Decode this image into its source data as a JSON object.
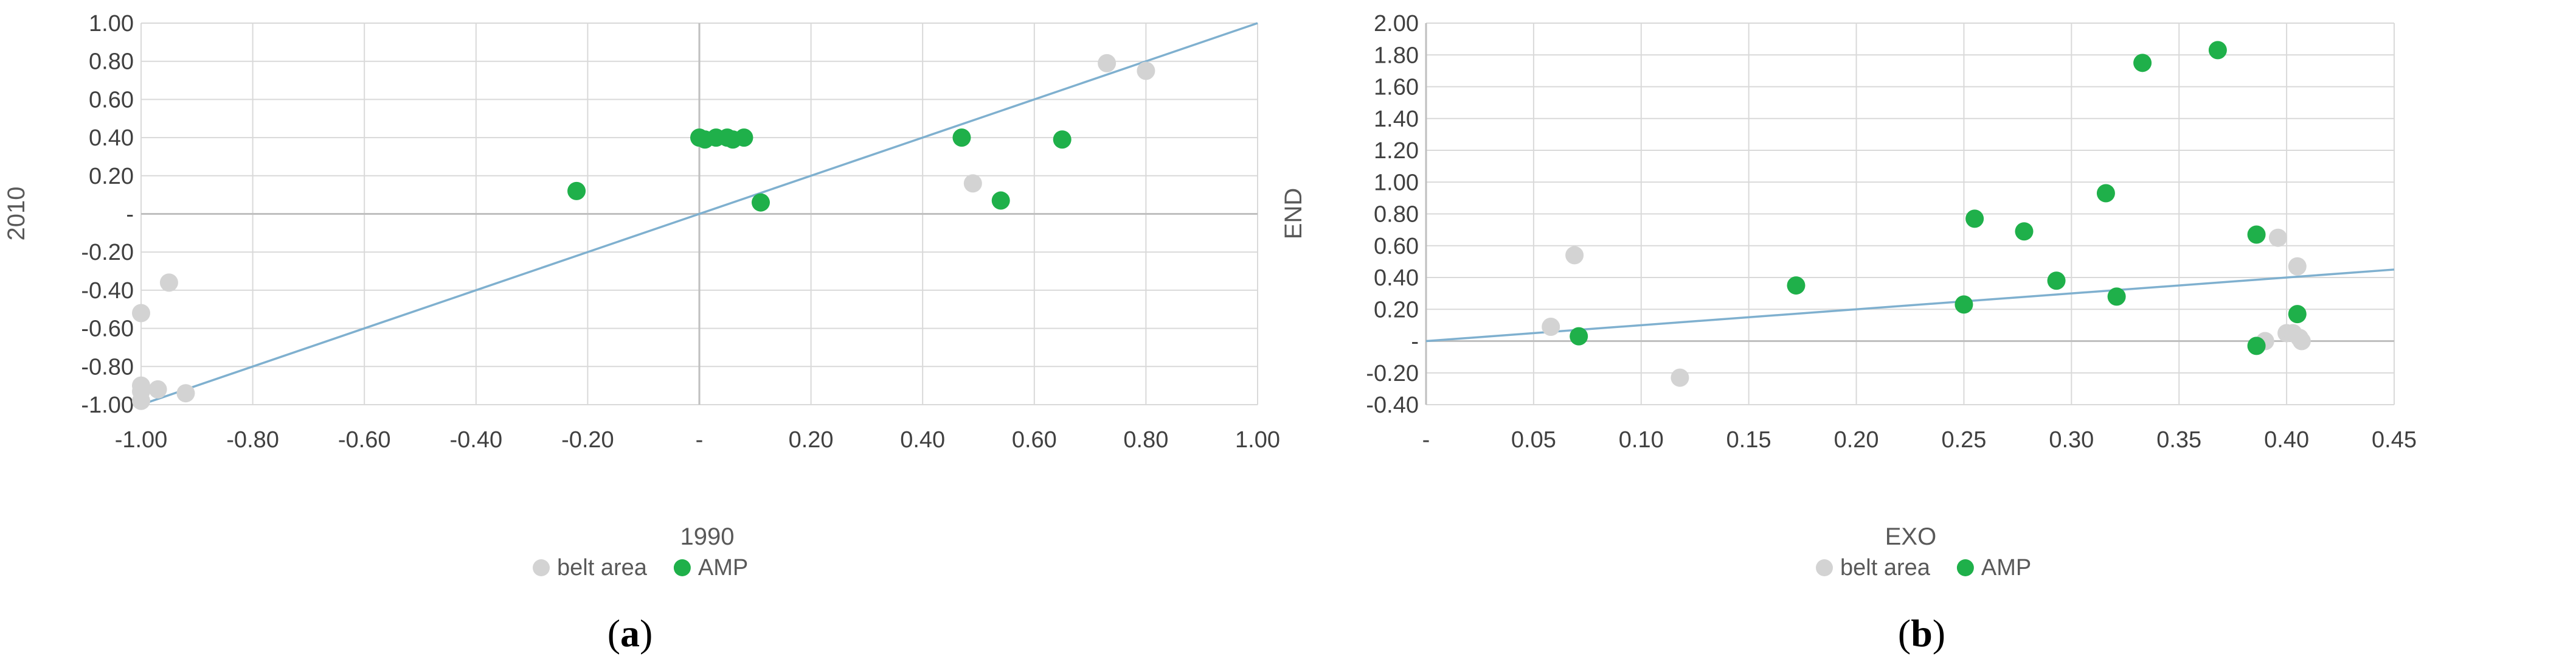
{
  "colors": {
    "belt_area": "#d3d3d3",
    "amp": "#1fb04a",
    "trend": "#7fb0cf",
    "grid": "#d9d9d9",
    "zero_axis": "#bfbfbf"
  },
  "chart_data": [
    {
      "type": "scatter",
      "panel_label": "a",
      "xlabel": "1990",
      "ylabel": "2010",
      "xlim": [
        -1.0,
        1.0
      ],
      "ylim": [
        -1.0,
        1.0
      ],
      "x_ticks": [
        -1.0,
        -0.8,
        -0.6,
        -0.4,
        -0.2,
        0,
        0.2,
        0.4,
        0.6,
        0.8,
        1.0
      ],
      "x_tick_labels": [
        "-1.00",
        "-0.80",
        "-0.60",
        "-0.40",
        "-0.20",
        "-",
        "0.20",
        "0.40",
        "0.60",
        "0.80",
        "1.00"
      ],
      "y_ticks": [
        1.0,
        0.8,
        0.6,
        0.4,
        0.2,
        0,
        -0.2,
        -0.4,
        -0.6,
        -0.8,
        -1.0
      ],
      "y_tick_labels": [
        "1.00",
        "0.80",
        "0.60",
        "0.40",
        "0.20",
        "-",
        "-0.20",
        "-0.40",
        "-0.60",
        "-0.80",
        "-1.00"
      ],
      "grid": true,
      "legend": "bottom",
      "trendline": {
        "x": [
          -1.0,
          1.0
        ],
        "y": [
          -1.0,
          1.0
        ]
      },
      "series": [
        {
          "name": "belt area",
          "color": "#d3d3d3",
          "points": [
            [
              -1.0,
              -0.52
            ],
            [
              -0.95,
              -0.36
            ],
            [
              -1.0,
              -0.9
            ],
            [
              -1.0,
              -0.93
            ],
            [
              -0.97,
              -0.92
            ],
            [
              -1.0,
              -0.98
            ],
            [
              -0.92,
              -0.94
            ],
            [
              0.49,
              0.16
            ],
            [
              0.73,
              0.79
            ],
            [
              0.8,
              0.75
            ]
          ]
        },
        {
          "name": "AMP",
          "color": "#1fb04a",
          "points": [
            [
              -0.22,
              0.12
            ],
            [
              0.0,
              0.4
            ],
            [
              0.01,
              0.39
            ],
            [
              0.03,
              0.4
            ],
            [
              0.05,
              0.4
            ],
            [
              0.06,
              0.39
            ],
            [
              0.08,
              0.4
            ],
            [
              0.11,
              0.06
            ],
            [
              0.47,
              0.4
            ],
            [
              0.54,
              0.07
            ],
            [
              0.65,
              0.39
            ]
          ]
        }
      ]
    },
    {
      "type": "scatter",
      "panel_label": "b",
      "xlabel": "EXO",
      "ylabel": "END",
      "xlim": [
        0,
        0.45
      ],
      "ylim": [
        -0.4,
        2.0
      ],
      "x_ticks": [
        0,
        0.05,
        0.1,
        0.15,
        0.2,
        0.25,
        0.3,
        0.35,
        0.4,
        0.45
      ],
      "x_tick_labels": [
        "-",
        "0.05",
        "0.10",
        "0.15",
        "0.20",
        "0.25",
        "0.30",
        "0.35",
        "0.40",
        "0.45"
      ],
      "y_ticks": [
        2.0,
        1.8,
        1.6,
        1.4,
        1.2,
        1.0,
        0.8,
        0.6,
        0.4,
        0.2,
        0,
        -0.2,
        -0.4
      ],
      "y_tick_labels": [
        "2.00",
        "1.80",
        "1.60",
        "1.40",
        "1.20",
        "1.00",
        "0.80",
        "0.60",
        "0.40",
        "0.20",
        "-",
        "-0.20",
        "-0.40"
      ],
      "grid": true,
      "legend": "bottom",
      "trendline": {
        "x": [
          0,
          0.45
        ],
        "y": [
          0.0,
          0.45
        ]
      },
      "series": [
        {
          "name": "belt area",
          "color": "#d3d3d3",
          "points": [
            [
              0.058,
              0.09
            ],
            [
              0.069,
              0.54
            ],
            [
              0.118,
              -0.23
            ],
            [
              0.39,
              0.0
            ],
            [
              0.396,
              0.65
            ],
            [
              0.4,
              0.05
            ],
            [
              0.403,
              0.05
            ],
            [
              0.405,
              0.47
            ],
            [
              0.406,
              0.02
            ],
            [
              0.407,
              0.0
            ]
          ]
        },
        {
          "name": "AMP",
          "color": "#1fb04a",
          "points": [
            [
              0.071,
              0.03
            ],
            [
              0.172,
              0.35
            ],
            [
              0.25,
              0.23
            ],
            [
              0.255,
              0.77
            ],
            [
              0.278,
              0.69
            ],
            [
              0.293,
              0.38
            ],
            [
              0.316,
              0.93
            ],
            [
              0.321,
              0.28
            ],
            [
              0.333,
              1.75
            ],
            [
              0.368,
              1.83
            ],
            [
              0.386,
              0.67
            ],
            [
              0.386,
              -0.03
            ],
            [
              0.405,
              0.17
            ]
          ]
        }
      ]
    }
  ]
}
